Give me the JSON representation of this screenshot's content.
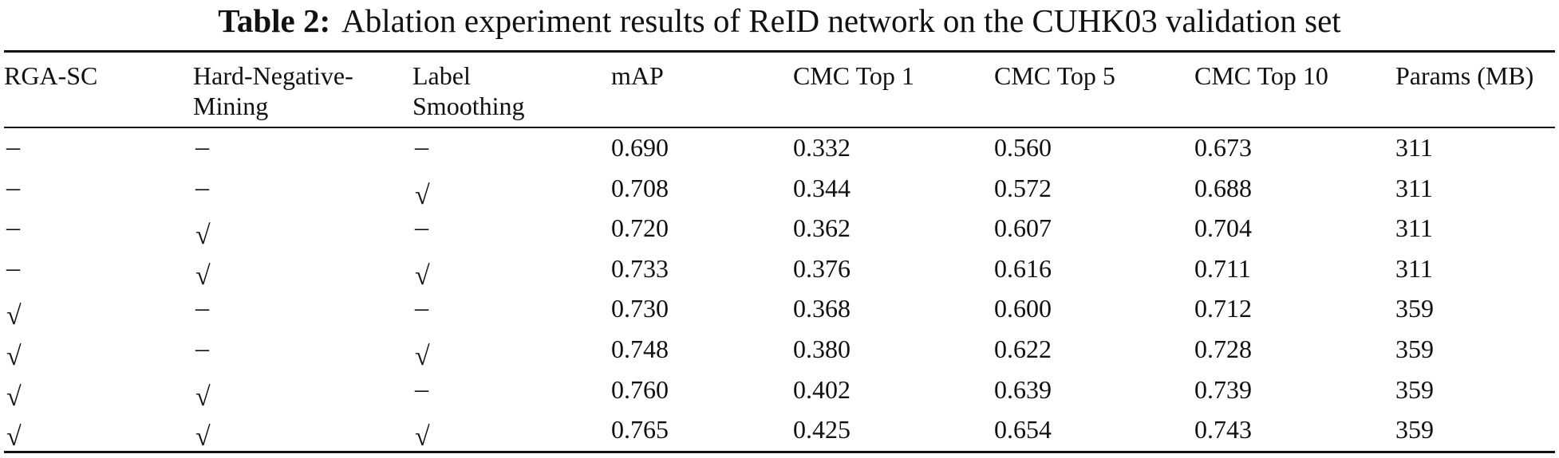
{
  "caption": {
    "label": "Table 2:",
    "text": "Ablation experiment results of ReID network on the CUHK03 validation set"
  },
  "headers": {
    "rga": "RGA-SC",
    "hnm_1": "Hard-Negative-",
    "hnm_2": "Mining",
    "ls_1": "Label",
    "ls_2": "Smoothing",
    "map": "mAP",
    "top1": "CMC Top 1",
    "top5": "CMC Top 5",
    "top10": "CMC Top 10",
    "params": "Params (MB)"
  },
  "symbols": {
    "yes": "√",
    "no": "–"
  },
  "rows": [
    {
      "rga": false,
      "hnm": false,
      "ls": false,
      "map": "0.690",
      "top1": "0.332",
      "top5": "0.560",
      "top10": "0.673",
      "params": "311"
    },
    {
      "rga": false,
      "hnm": false,
      "ls": true,
      "map": "0.708",
      "top1": "0.344",
      "top5": "0.572",
      "top10": "0.688",
      "params": "311"
    },
    {
      "rga": false,
      "hnm": true,
      "ls": false,
      "map": "0.720",
      "top1": "0.362",
      "top5": "0.607",
      "top10": "0.704",
      "params": "311"
    },
    {
      "rga": false,
      "hnm": true,
      "ls": true,
      "map": "0.733",
      "top1": "0.376",
      "top5": "0.616",
      "top10": "0.711",
      "params": "311"
    },
    {
      "rga": true,
      "hnm": false,
      "ls": false,
      "map": "0.730",
      "top1": "0.368",
      "top5": "0.600",
      "top10": "0.712",
      "params": "359"
    },
    {
      "rga": true,
      "hnm": false,
      "ls": true,
      "map": "0.748",
      "top1": "0.380",
      "top5": "0.622",
      "top10": "0.728",
      "params": "359"
    },
    {
      "rga": true,
      "hnm": true,
      "ls": false,
      "map": "0.760",
      "top1": "0.402",
      "top5": "0.639",
      "top10": "0.739",
      "params": "359"
    },
    {
      "rga": true,
      "hnm": true,
      "ls": true,
      "map": "0.765",
      "top1": "0.425",
      "top5": "0.654",
      "top10": "0.743",
      "params": "359"
    }
  ]
}
